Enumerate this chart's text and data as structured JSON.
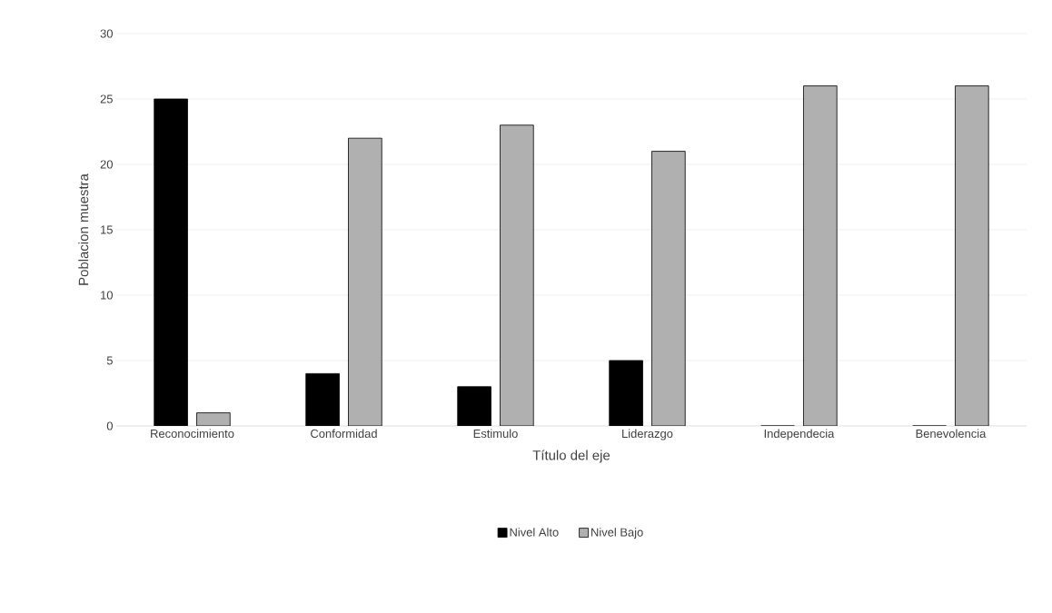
{
  "chart_data": {
    "type": "bar",
    "xlabel": "Título del eje",
    "ylabel": "Poblacion muestra",
    "categories": [
      "Reconocimiento",
      "Conformidad",
      "Estimulo",
      "Liderazgo",
      "Independecia",
      "Benevolencia"
    ],
    "series": [
      {
        "name": "Nivel Alto",
        "color": "#000000",
        "values": [
          25,
          4,
          3,
          5,
          0,
          0
        ]
      },
      {
        "name": "Nivel Bajo",
        "color": "#b0b0b0",
        "values": [
          1,
          22,
          23,
          21,
          26,
          26
        ]
      }
    ],
    "ylim": [
      0,
      30
    ],
    "yticks": [
      0,
      5,
      10,
      15,
      20,
      25,
      30
    ],
    "grid": "y",
    "legend": "bottom"
  }
}
